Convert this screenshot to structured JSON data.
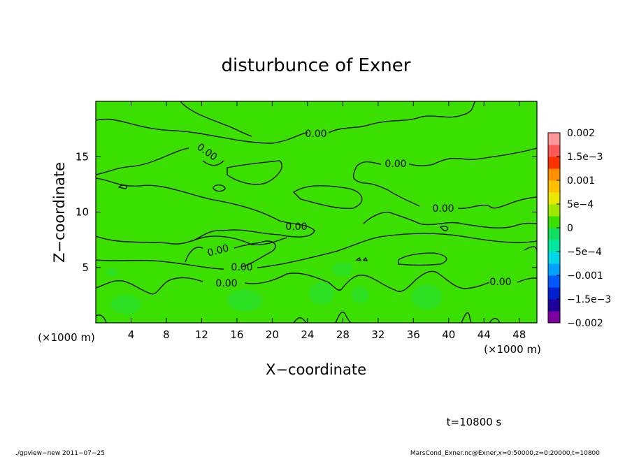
{
  "chart_data": {
    "type": "contour",
    "title": "disturbunce of Exner",
    "x_label": "X−coordinate",
    "y_label": "Z−coordinate",
    "x_unit": "(×1000 m)",
    "y_unit": "(×1000 m)",
    "xlim": [
      0,
      50
    ],
    "ylim": [
      0,
      20
    ],
    "xticks": [
      4,
      8,
      12,
      16,
      20,
      24,
      28,
      32,
      36,
      40,
      44,
      48
    ],
    "yticks": [
      5,
      10,
      15
    ],
    "contour_level": {
      "value": 0,
      "label": "0.00"
    },
    "colorbar": {
      "lim": [
        -0.002,
        0.002
      ],
      "ticks": [
        0.002,
        {
          "value": 0.0015,
          "label": "1.5e−3"
        },
        0.001,
        {
          "value": 0.0005,
          "label": "5e−4"
        },
        0,
        {
          "value": -0.0005,
          "label": "−5e−4"
        },
        {
          "value": -0.001,
          "label": "−0.001"
        },
        {
          "value": -0.0015,
          "label": "−1.5e−3"
        },
        {
          "value": -0.002,
          "label": "−0.002"
        }
      ],
      "colors": [
        "#7a00a0",
        "#20009a",
        "#0020d0",
        "#0058ff",
        "#00a0ff",
        "#00d8e8",
        "#00e8a0",
        "#10e060",
        "#3ce000",
        "#a0e800",
        "#e8e800",
        "#ffc000",
        "#ff9000",
        "#ff3000",
        "#ff5858",
        "#ff9898"
      ]
    },
    "time_label": "t=10800 s",
    "footer_left": "./gpview−new  2011−07−25",
    "footer_right": "MarsCond_Exner.nc@Exner,x=0:50000,z=0:20000,t=10800"
  }
}
